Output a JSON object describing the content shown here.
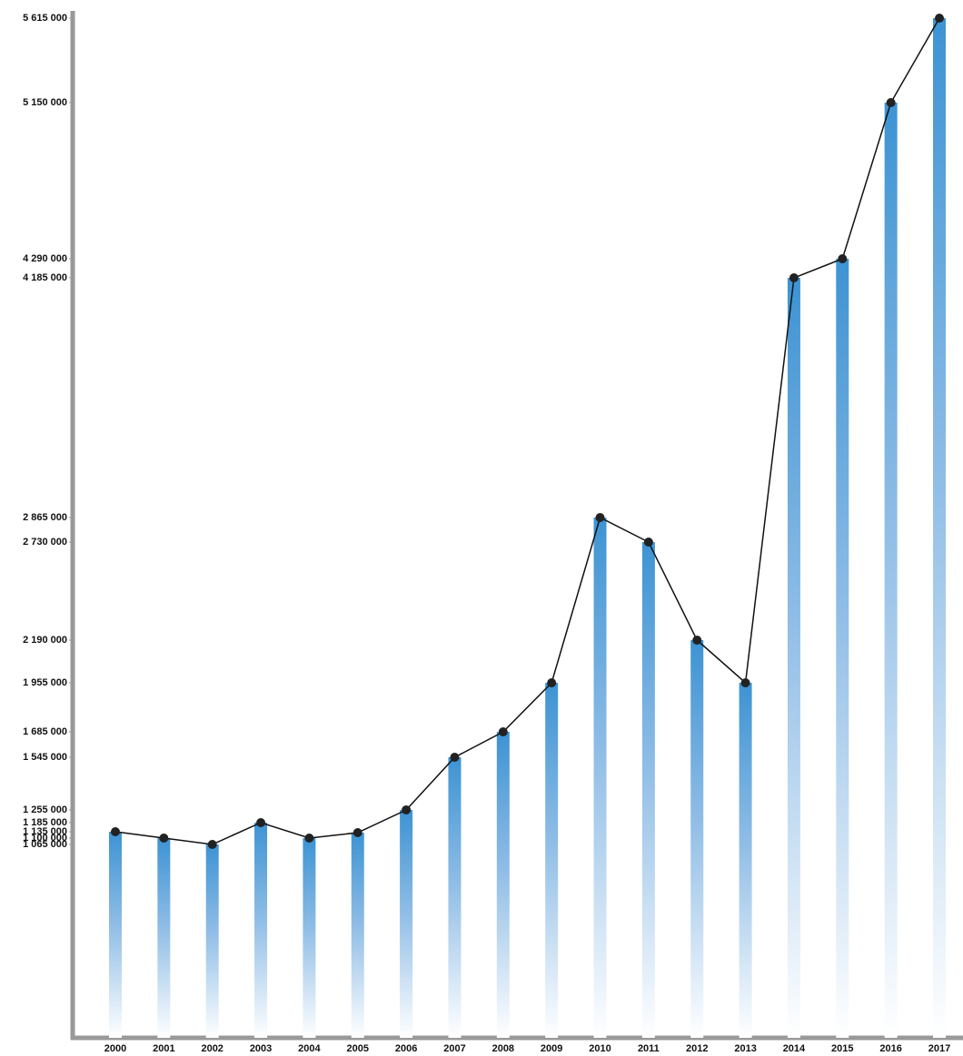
{
  "chart_data": {
    "type": "bar-line",
    "categories": [
      "2000",
      "2001",
      "2002",
      "2003",
      "2004",
      "2005",
      "2006",
      "2007",
      "2008",
      "2009",
      "2010",
      "2011",
      "2012",
      "2013",
      "2014",
      "2015",
      "2016",
      "2017"
    ],
    "values": [
      1135000,
      1100000,
      1065000,
      1185000,
      1100000,
      1130000,
      1255000,
      1545000,
      1685000,
      1955000,
      2865000,
      2730000,
      2190000,
      1955000,
      4185000,
      4290000,
      5150000,
      5615000
    ],
    "color": "#3d93d3",
    "line_color": "#111111",
    "ylim": [
      0,
      5640000
    ],
    "yticks": [
      {
        "value": 1065000,
        "label": "1 065 000"
      },
      {
        "value": 1100000,
        "label": "1 100 000"
      },
      {
        "value": 1135000,
        "label": "1 135 000"
      },
      {
        "value": 1185000,
        "label": "1 185 000"
      },
      {
        "value": 1255000,
        "label": "1 255 000"
      },
      {
        "value": 1545000,
        "label": "1 545 000"
      },
      {
        "value": 1685000,
        "label": "1 685 000"
      },
      {
        "value": 1955000,
        "label": "1 955 000"
      },
      {
        "value": 2190000,
        "label": "2 190 000"
      },
      {
        "value": 2730000,
        "label": "2 730 000"
      },
      {
        "value": 2865000,
        "label": "2 865 000"
      },
      {
        "value": 4185000,
        "label": "4 185 000"
      },
      {
        "value": 4290000,
        "label": "4 290 000"
      },
      {
        "value": 5150000,
        "label": "5 150 000"
      },
      {
        "value": 5615000,
        "label": "5 615 000"
      }
    ]
  }
}
